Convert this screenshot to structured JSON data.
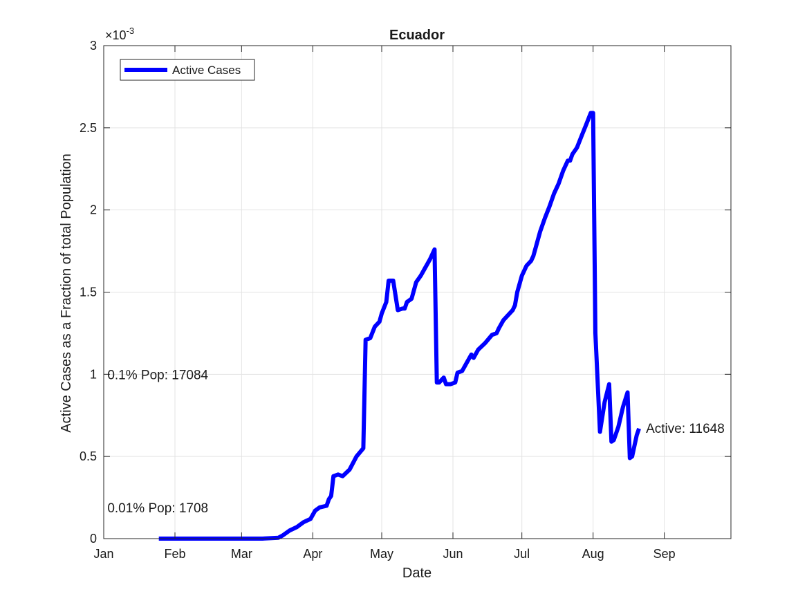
{
  "chart_data": {
    "type": "line",
    "title": "Ecuador",
    "xlabel": "Date",
    "ylabel": "Active Cases as a Fraction of total Population",
    "y_exponent_label": "×10",
    "y_exponent_power": "-3",
    "x_date_range": [
      "2020-01-01",
      "2020-09-30"
    ],
    "ylim": [
      0,
      0.003
    ],
    "x_ticks": [
      {
        "date": "2020-01-01",
        "label": "Jan"
      },
      {
        "date": "2020-02-01",
        "label": "Feb"
      },
      {
        "date": "2020-03-01",
        "label": "Mar"
      },
      {
        "date": "2020-04-01",
        "label": "Apr"
      },
      {
        "date": "2020-05-01",
        "label": "May"
      },
      {
        "date": "2020-06-01",
        "label": "Jun"
      },
      {
        "date": "2020-07-01",
        "label": "Jul"
      },
      {
        "date": "2020-08-01",
        "label": "Aug"
      },
      {
        "date": "2020-09-01",
        "label": "Sep"
      }
    ],
    "y_ticks": [
      {
        "value": 0,
        "label": "0"
      },
      {
        "value": 0.0005,
        "label": "0.5"
      },
      {
        "value": 0.001,
        "label": "1"
      },
      {
        "value": 0.0015,
        "label": "1.5"
      },
      {
        "value": 0.002,
        "label": "2"
      },
      {
        "value": 0.0025,
        "label": "2.5"
      },
      {
        "value": 0.003,
        "label": "3"
      }
    ],
    "grid": true,
    "legend": {
      "placement": "top-left",
      "entries": [
        "Active Cases"
      ]
    },
    "series": [
      {
        "name": "Active Cases",
        "color": "#0000ff",
        "points": [
          [
            "2020-01-25",
            0
          ],
          [
            "2020-02-15",
            0
          ],
          [
            "2020-03-10",
            0
          ],
          [
            "2020-03-17",
            5e-06
          ],
          [
            "2020-03-19",
            2e-05
          ],
          [
            "2020-03-22",
            5e-05
          ],
          [
            "2020-03-25",
            7e-05
          ],
          [
            "2020-03-28",
            0.0001
          ],
          [
            "2020-03-31",
            0.00012
          ],
          [
            "2020-04-02",
            0.00017
          ],
          [
            "2020-04-04",
            0.00019
          ],
          [
            "2020-04-07",
            0.0002
          ],
          [
            "2020-04-08",
            0.00024
          ],
          [
            "2020-04-09",
            0.00026
          ],
          [
            "2020-04-10",
            0.00038
          ],
          [
            "2020-04-12",
            0.00039
          ],
          [
            "2020-04-14",
            0.00038
          ],
          [
            "2020-04-17",
            0.00042
          ],
          [
            "2020-04-20",
            0.0005
          ],
          [
            "2020-04-23",
            0.00055
          ],
          [
            "2020-04-24",
            0.00121
          ],
          [
            "2020-04-26",
            0.00122
          ],
          [
            "2020-04-28",
            0.00129
          ],
          [
            "2020-04-30",
            0.00132
          ],
          [
            "2020-05-01",
            0.00137
          ],
          [
            "2020-05-03",
            0.00144
          ],
          [
            "2020-05-04",
            0.00157
          ],
          [
            "2020-05-06",
            0.00157
          ],
          [
            "2020-05-08",
            0.00139
          ],
          [
            "2020-05-10",
            0.0014
          ],
          [
            "2020-05-11",
            0.0014
          ],
          [
            "2020-05-12",
            0.00144
          ],
          [
            "2020-05-14",
            0.00146
          ],
          [
            "2020-05-16",
            0.00156
          ],
          [
            "2020-05-18",
            0.0016
          ],
          [
            "2020-05-20",
            0.00165
          ],
          [
            "2020-05-22",
            0.0017
          ],
          [
            "2020-05-24",
            0.00176
          ],
          [
            "2020-05-25",
            0.00095
          ],
          [
            "2020-05-26",
            0.00095
          ],
          [
            "2020-05-28",
            0.00098
          ],
          [
            "2020-05-29",
            0.00094
          ],
          [
            "2020-05-31",
            0.00094
          ],
          [
            "2020-06-02",
            0.00095
          ],
          [
            "2020-06-03",
            0.00101
          ],
          [
            "2020-06-05",
            0.00102
          ],
          [
            "2020-06-07",
            0.00107
          ],
          [
            "2020-06-09",
            0.00112
          ],
          [
            "2020-06-10",
            0.0011
          ],
          [
            "2020-06-12",
            0.00115
          ],
          [
            "2020-06-15",
            0.00119
          ],
          [
            "2020-06-18",
            0.00124
          ],
          [
            "2020-06-20",
            0.00125
          ],
          [
            "2020-06-21",
            0.00128
          ],
          [
            "2020-06-23",
            0.00133
          ],
          [
            "2020-06-25",
            0.00136
          ],
          [
            "2020-06-27",
            0.00139
          ],
          [
            "2020-06-28",
            0.00142
          ],
          [
            "2020-06-29",
            0.0015
          ],
          [
            "2020-07-01",
            0.0016
          ],
          [
            "2020-07-03",
            0.00166
          ],
          [
            "2020-07-05",
            0.00169
          ],
          [
            "2020-07-06",
            0.00172
          ],
          [
            "2020-07-07",
            0.00177
          ],
          [
            "2020-07-09",
            0.00187
          ],
          [
            "2020-07-11",
            0.00195
          ],
          [
            "2020-07-13",
            0.00202
          ],
          [
            "2020-07-15",
            0.0021
          ],
          [
            "2020-07-17",
            0.00216
          ],
          [
            "2020-07-19",
            0.00224
          ],
          [
            "2020-07-21",
            0.0023
          ],
          [
            "2020-07-22",
            0.0023
          ],
          [
            "2020-07-23",
            0.00234
          ],
          [
            "2020-07-25",
            0.00238
          ],
          [
            "2020-07-27",
            0.00245
          ],
          [
            "2020-07-29",
            0.00252
          ],
          [
            "2020-07-31",
            0.00259
          ],
          [
            "2020-08-01",
            0.00259
          ],
          [
            "2020-08-02",
            0.00125
          ],
          [
            "2020-08-04",
            0.00065
          ],
          [
            "2020-08-06",
            0.00083
          ],
          [
            "2020-08-08",
            0.00094
          ],
          [
            "2020-08-09",
            0.00059
          ],
          [
            "2020-08-10",
            0.0006
          ],
          [
            "2020-08-12",
            0.00068
          ],
          [
            "2020-08-14",
            0.0008
          ],
          [
            "2020-08-16",
            0.00089
          ],
          [
            "2020-08-17",
            0.00049
          ],
          [
            "2020-08-18",
            0.0005
          ],
          [
            "2020-08-20",
            0.00063
          ],
          [
            "2020-08-21",
            0.00067
          ]
        ]
      }
    ],
    "annotations": [
      {
        "text": "0.1% Pop: 17084",
        "x": "2020-01-02",
        "y": 0.001
      },
      {
        "text": "0.01% Pop: 1708",
        "x": "2020-01-02",
        "y": 0.0001
      },
      {
        "text": "Active: 11648",
        "x": "2020-08-21",
        "y": 0.00067
      }
    ]
  }
}
